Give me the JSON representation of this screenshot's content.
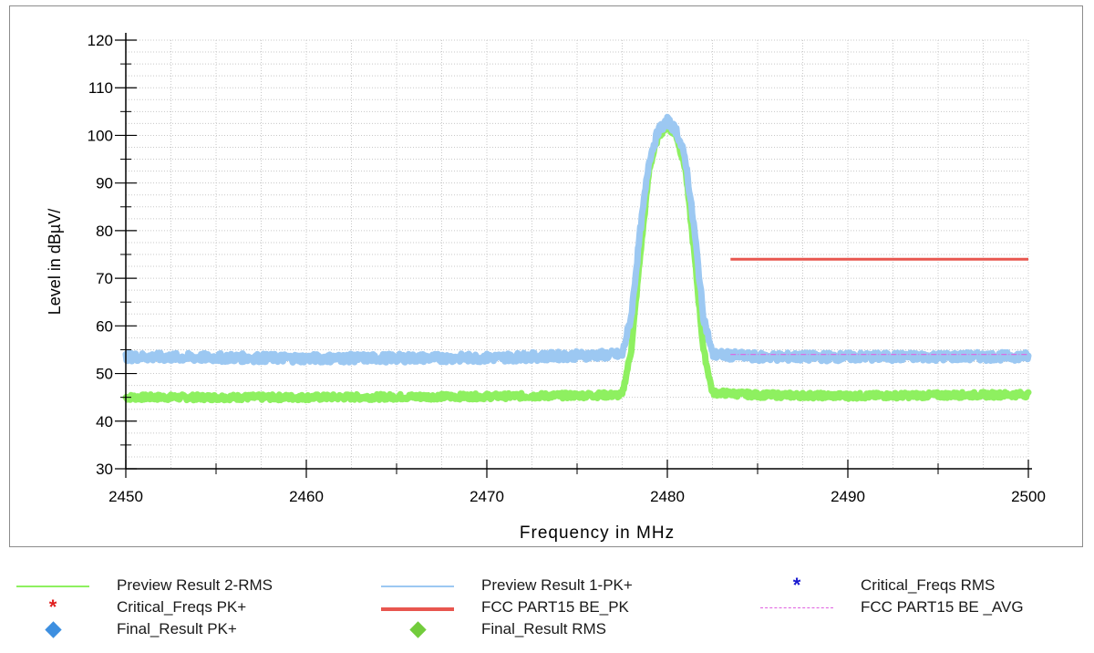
{
  "chart_data": {
    "type": "line",
    "xlabel": "Frequency in MHz",
    "ylabel": "Level in dBµV/",
    "xlim": [
      2450,
      2500
    ],
    "ylim": [
      30,
      120
    ],
    "x_ticks": [
      2450,
      2460,
      2470,
      2480,
      2490,
      2500
    ],
    "y_ticks": [
      30,
      40,
      50,
      60,
      70,
      80,
      90,
      100,
      110,
      120
    ],
    "x_tick_labels": [
      "2450",
      "2460",
      "2470",
      "2480",
      "2490",
      "2500"
    ],
    "y_tick_labels": [
      "30",
      "40",
      "50",
      "60",
      "70",
      "80",
      "90",
      "100",
      "110",
      "120"
    ],
    "grid": true,
    "legend_position": "bottom",
    "series": [
      {
        "name": "Preview Result 2-RMS",
        "color": "#8ef060",
        "x": [
          2450,
          2460,
          2470,
          2477.5,
          2478,
          2478.5,
          2479,
          2479.5,
          2480,
          2480.5,
          2481,
          2481.5,
          2482,
          2482.5,
          2485,
          2490,
          2500
        ],
        "y": [
          45,
          45,
          45.2,
          45.5,
          55,
          75,
          93,
          100,
          102,
          100,
          93,
          75,
          55,
          46,
          45.5,
          45.3,
          45.6
        ],
        "noise": 0.6
      },
      {
        "name": "Preview Result 1-PK+",
        "color": "#9cc8f2",
        "x": [
          2450,
          2460,
          2470,
          2477.5,
          2478,
          2478.5,
          2479,
          2479.5,
          2480,
          2480.5,
          2481,
          2481.5,
          2482,
          2482.5,
          2485,
          2490,
          2500
        ],
        "y": [
          53.5,
          53.2,
          53.3,
          54,
          62,
          80,
          95,
          101,
          103,
          101,
          95,
          80,
          62,
          54,
          53.5,
          53.5,
          53.6
        ],
        "noise": 0.9
      },
      {
        "name": "FCC PART15 BE_PK",
        "color": "#e8564f",
        "x": [
          2483.5,
          2500
        ],
        "y": [
          74,
          74
        ]
      },
      {
        "name": "FCC PART15 BE _AVG",
        "color": "#e060e0",
        "x": [
          2483.5,
          2500
        ],
        "y": [
          54,
          54
        ]
      }
    ]
  },
  "legend": [
    {
      "label": "Preview Result 2-RMS",
      "symbol": "line",
      "color": "#8ef060"
    },
    {
      "label": "Preview Result 1-PK+",
      "symbol": "line",
      "color": "#9cc8f2"
    },
    {
      "label": "Critical_Freqs RMS",
      "symbol": "star",
      "color": "#1a1ad0"
    },
    {
      "label": "Critical_Freqs PK+",
      "symbol": "star",
      "color": "#e02020"
    },
    {
      "label": "FCC PART15 BE_PK",
      "symbol": "thick-line",
      "color": "#e8564f"
    },
    {
      "label": "FCC PART15 BE _AVG",
      "symbol": "dashdot-line",
      "color": "#e060e0"
    },
    {
      "label": "Final_Result PK+",
      "symbol": "diamond",
      "color": "#3d8fe0"
    },
    {
      "label": "Final_Result RMS",
      "symbol": "diamond",
      "color": "#72cc3c"
    }
  ]
}
